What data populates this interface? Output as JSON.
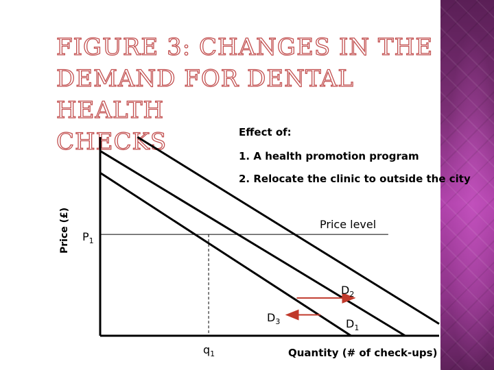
{
  "title_lines": [
    "FIGURE 3: CHANGES IN THE",
    "DEMAND FOR DENTAL HEALTH",
    "CHECKS"
  ],
  "chart_data": {
    "type": "line",
    "title": "FIGURE 3: CHANGES IN THE DEMAND FOR DENTAL HEALTH CHECKS",
    "xlabel": "Quantity (# of check-ups)",
    "ylabel": "Price (£)",
    "effect_heading": "Effect of:",
    "effect_items": [
      "1. A health promotion program",
      "2. Relocate the clinic to outside the city"
    ],
    "price_level_label": "Price level",
    "p1_label": "P",
    "p1_sub": "1",
    "q1_label": "q",
    "q1_sub": "1",
    "series": [
      {
        "name": "D",
        "sub": "2",
        "x": [
          0.11,
          1.0
        ],
        "y": [
          1.0,
          0.06
        ]
      },
      {
        "name": "D",
        "sub": "1",
        "x": [
          0.0,
          0.9
        ],
        "y": [
          0.93,
          0.0
        ]
      },
      {
        "name": "D",
        "sub": "3",
        "x": [
          0.0,
          0.74
        ],
        "y": [
          0.82,
          0.0
        ]
      }
    ],
    "price_level": 0.51,
    "q1": 0.32,
    "arrows": [
      {
        "from_series": "D2",
        "direction": "right",
        "x": [
          0.58,
          0.75
        ],
        "y": 0.19
      },
      {
        "from_series": "D3",
        "direction": "left",
        "x": [
          0.55,
          0.65
        ],
        "y": 0.105
      }
    ],
    "xlim": [
      0,
      1
    ],
    "ylim": [
      0,
      1
    ],
    "grid": false,
    "legend": "none"
  }
}
